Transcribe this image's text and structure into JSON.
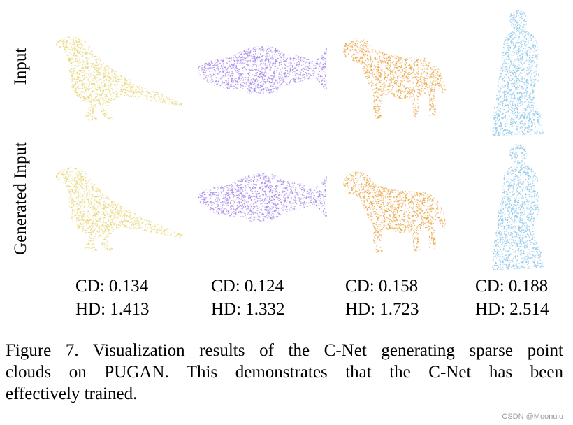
{
  "rows": {
    "input_label": "Input",
    "generated_label": "Generated Input"
  },
  "shapes": [
    {
      "icon": "bird-point-cloud-icon",
      "color": "#e8d67a",
      "cd": "CD: 0.134",
      "hd": "HD: 1.413"
    },
    {
      "icon": "fish-point-cloud-icon",
      "color": "#a98be8",
      "cd": "CD: 0.124",
      "hd": "HD: 1.332"
    },
    {
      "icon": "dog-point-cloud-icon",
      "color": "#eaa74a",
      "cd": "CD: 0.158",
      "hd": "HD: 1.723"
    },
    {
      "icon": "statue-point-cloud-icon",
      "color": "#8fc7ea",
      "cd": "CD: 0.188",
      "hd": "HD: 2.514"
    }
  ],
  "caption": {
    "line1": "Figure 7. Visualization results of the C-Net generating sparse point",
    "line2": "clouds on PUGAN. This demonstrates that the C-Net has been",
    "line3": "effectively trained."
  },
  "watermark": "CSDN @Moonuiu"
}
